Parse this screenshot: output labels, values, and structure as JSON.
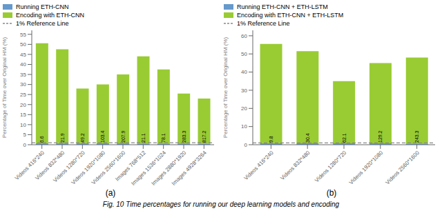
{
  "chart_data": [
    {
      "type": "bar",
      "stacked": true,
      "grid": false,
      "legend": "upper right",
      "categories": [
        "Videos 416*240",
        "Videos 832*480",
        "Videos 1280*720",
        "Videos 1920*1080",
        "Videos 2560*1600",
        "Images 768*512",
        "Images 1536*1024",
        "Images 2880*1920",
        "Images 4928*3264"
      ],
      "series": [
        {
          "name": "Running ETH-CNN",
          "color": "#6699cc",
          "values": [
            0.78,
            0.82,
            0.74,
            0.7,
            0.67,
            0.6,
            0.62,
            0.64,
            0.57
          ]
        },
        {
          "name": "Encoding with ETH-CNN",
          "color": "#99cc33",
          "values": [
            49.75,
            46.7,
            27.28,
            29.32,
            34.33,
            43.42,
            36.88,
            24.88,
            22.45
          ]
        }
      ],
      "reference_lines": [
        {
          "name": "1% Reference Line",
          "value": 1,
          "color": "#888888",
          "line_style": "dashed"
        }
      ],
      "annotations": [
        "6.6",
        "21.9",
        "49.2",
        "103.4",
        "207.9",
        "21.1",
        "78.1",
        "283.3",
        "817.2"
      ],
      "y_label": "Percentage of Time over Original HM (%)",
      "ylim": [
        0,
        57
      ],
      "yticks": [
        0,
        5,
        10,
        15,
        20,
        25,
        30,
        35,
        40,
        45,
        50,
        55
      ],
      "sublabel": "(a)"
    },
    {
      "type": "bar",
      "stacked": true,
      "grid": false,
      "legend": "upper right",
      "categories": [
        "Videos 416*240",
        "Videos 832*480",
        "Videos 1280*720",
        "Videos 1920*1080",
        "Videos 2560*1600"
      ],
      "series": [
        {
          "name": "Running ETH-CNN + ETH-LSTM",
          "color": "#6699cc",
          "values": [
            0.84,
            0.8,
            0.72,
            0.77,
            0.7
          ]
        },
        {
          "name": "Encoding with ETH-CNN + ETH-LSTM",
          "color": "#99cc33",
          "values": [
            54.68,
            50.72,
            34.28,
            44.25,
            47.32
          ]
        }
      ],
      "reference_lines": [
        {
          "name": "1% Reference Line",
          "value": 1,
          "color": "#888888",
          "line_style": "dashed"
        }
      ],
      "annotations": [
        "9.8",
        "30.4",
        "62.1",
        "129.2",
        "243.3"
      ],
      "y_label": "Percentage of Time over Original HM (%)",
      "ylim": [
        0,
        63
      ],
      "yticks": [
        0,
        5,
        10,
        15,
        20,
        25,
        30,
        35,
        40,
        45,
        50,
        55,
        60
      ],
      "sublabel": "(b)"
    }
  ],
  "caption": "Fig. 10   Time percentages for running our deep learning models and encoding"
}
